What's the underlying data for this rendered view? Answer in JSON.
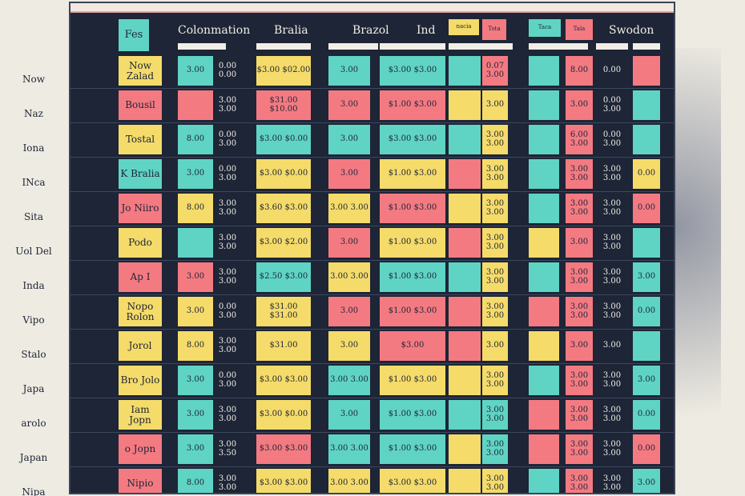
{
  "headers": {
    "fes": "Fes",
    "colonmation": "Colonmation",
    "bralia": "Bralia",
    "brazol": "Brazol",
    "ind": "Ind",
    "small1": "nacia",
    "small2": "Tota",
    "small3": "Taca",
    "small4": "Tala",
    "sweden": "Swodon"
  },
  "row_labels": [
    "Now",
    "Naz",
    "Iona",
    "INca",
    "Sita",
    "Uol Del",
    "Inda",
    "Vipo",
    "Stalo",
    "Japa",
    "arolo",
    "Japan",
    "Nipa"
  ],
  "rows": [
    {
      "name": "Now Zalad",
      "a": "3.00",
      "b": "0.00 0.00",
      "c": "$3.00 $02.00",
      "d": "3.00",
      "e": "$3.00 $3.00",
      "f": "0.07 3.00",
      "g": "8.00",
      "h": "0.00",
      "i": ""
    },
    {
      "name": "Bousil",
      "a": "",
      "b": "3.00 3.00",
      "c": "$31.00 $10.00",
      "d": "3.00",
      "e": "$1.00 $3.00",
      "f": "3.00",
      "g": "3.00",
      "h": "0.00 3.00",
      "i": ""
    },
    {
      "name": "Tostal",
      "a": "8.00",
      "b": "0.00 3.00",
      "c": "$3.00 $0.00",
      "d": "3.00",
      "e": "$3.00 $3.00",
      "f": "3.00 3.00",
      "g": "6.00 3.00",
      "h": "0.00 3.00",
      "i": ""
    },
    {
      "name": "K Bralia",
      "a": "3.00",
      "b": "0.00 3.00",
      "c": "$3.00 $0.00",
      "d": "3.00",
      "e": "$1.00 $3.00",
      "f": "3.00 3.00",
      "g": "3.00 3.00",
      "h": "3.00 3.00",
      "i": "0.00"
    },
    {
      "name": "Jo Niiro",
      "a": "8.00",
      "b": "3.00 3.00",
      "c": "$3.60 $3.00",
      "d": "3.00 3.00",
      "e": "$1.00 $3.00",
      "f": "3.00 3.00",
      "g": "3.00 3.00",
      "h": "3.00 3.00",
      "i": "0.00"
    },
    {
      "name": "Podo",
      "a": "",
      "b": "3.00 3.00",
      "c": "$3.00 $2.00",
      "d": "3.00",
      "e": "$1.00 $3.00",
      "f": "3.00 3.00",
      "g": "3.00",
      "h": "3.00 3.00",
      "i": ""
    },
    {
      "name": "Ap I",
      "a": "3.00",
      "b": "3.00 3.00",
      "c": "$2.50 $3.00",
      "d": "3.00 3.00",
      "e": "$1.00 $3.00",
      "f": "3.00 3.00",
      "g": "3.00 3.00",
      "h": "3.00 3.00",
      "i": "3.00"
    },
    {
      "name": "Nopo Rolon",
      "a": "3.00",
      "b": "0.00 3.00",
      "c": "$31.00 $31.00",
      "d": "3.00",
      "e": "$1.00 $3.00",
      "f": "3.00 3.00",
      "g": "3.00 3.00",
      "h": "3.00 3.00",
      "i": "0.00"
    },
    {
      "name": "Jorol",
      "a": "8.00",
      "b": "3.00 3.00",
      "c": "$31.00",
      "d": "3.00",
      "e": "$3.00",
      "f": "3.00",
      "g": "3.00",
      "h": "3.00",
      "i": ""
    },
    {
      "name": "Bro Jolo",
      "a": "3.00",
      "b": "0.00 3.00",
      "c": "$3.00 $3.00",
      "d": "3.00 3.00",
      "e": "$1.00 $3.00",
      "f": "3.00 3.00",
      "g": "3.00 3.00",
      "h": "3.00 3.00",
      "i": "3.00"
    },
    {
      "name": "Iam Jopn",
      "a": "3.00",
      "b": "3.00 3.00",
      "c": "$3.00 $0.00",
      "d": "3.00",
      "e": "$1.00 $3.00",
      "f": "3.00 3.00",
      "g": "3.00 3.00",
      "h": "3.00 3.00",
      "i": "0.00"
    },
    {
      "name": "o Jopn",
      "a": "3.00",
      "b": "3.00 3.50",
      "c": "$3.00 $3.00",
      "d": "3.00 3.00",
      "e": "$1.00 $3.00",
      "f": "3.00 3.00",
      "g": "3.00 3.00",
      "h": "3.00 3.00",
      "i": "0.00"
    },
    {
      "name": "Nipio",
      "a": "8.00",
      "b": "3.00 3.00",
      "c": "$3.00 $3.00",
      "d": "3.00 3.00",
      "e": "$3.00 $3.00",
      "f": "3.00 3.00",
      "g": "3.00 3.00",
      "h": "3.00 3.00",
      "i": "3.00"
    }
  ],
  "colors": {
    "teal": "#5fd4c4",
    "pink": "#f47a82",
    "yellow": "#f5db6a",
    "navy": "#1d2536",
    "paper": "#eeebe2"
  }
}
